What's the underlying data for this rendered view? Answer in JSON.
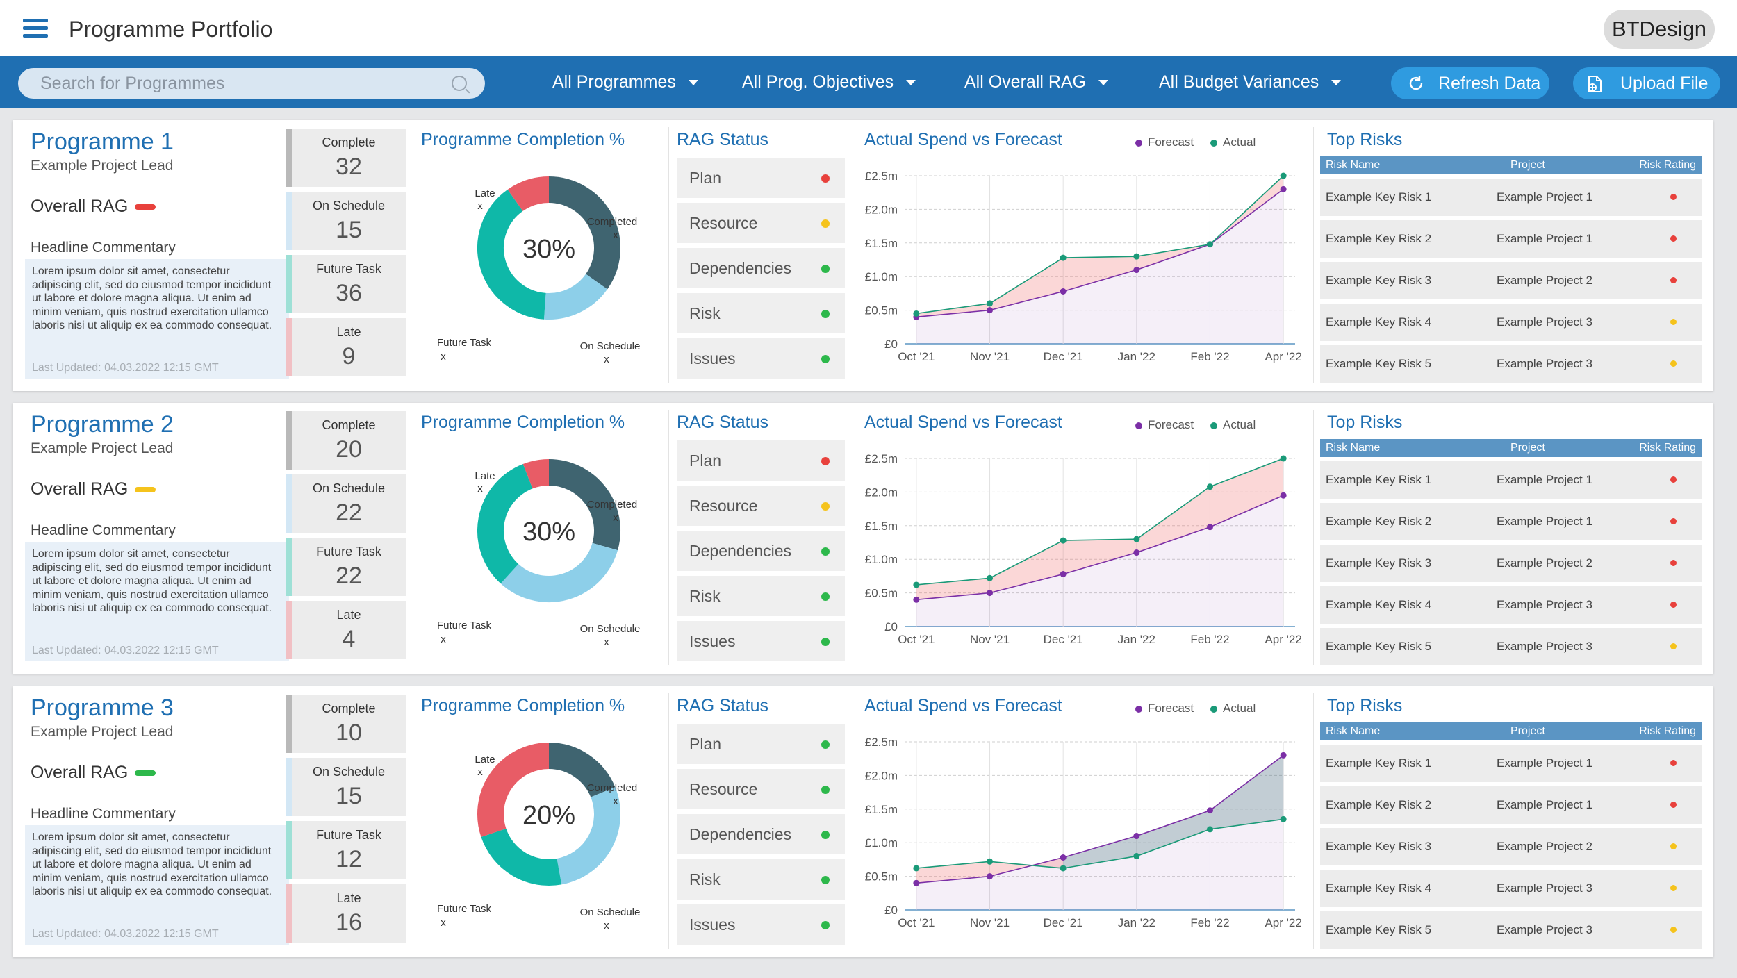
{
  "header": {
    "title": "Programme Portfolio",
    "brand": "BTDesign"
  },
  "filters": {
    "search_placeholder": "Search for Programmes",
    "programmes": "All Programmes",
    "objectives": "All Prog. Objectives",
    "rag": "All Overall RAG",
    "budget": "All Budget Variances",
    "refresh": "Refresh Data",
    "upload": "Upload File"
  },
  "colors": {
    "brand_blue": "#1f6fb2",
    "red": "#e8413c",
    "amber": "#f5c31c",
    "green": "#2db84b",
    "donut_completed": "#3f6470",
    "donut_on_schedule": "#8dcfe9",
    "donut_future": "#0fb8a8",
    "donut_late": "#e85c66",
    "forecast": "#7b2fa6",
    "actual": "#1a9a78"
  },
  "labels": {
    "overall_rag": "Overall RAG",
    "headline_commentary": "Headline Commentary",
    "completion_title": "Programme Completion %",
    "rag_title": "RAG Status",
    "spend_title": "Actual Spend vs Forecast",
    "risks_title": "Top Risks",
    "legend_forecast": "Forecast",
    "legend_actual": "Actual",
    "risk_col_name": "Risk Name",
    "risk_col_project": "Project",
    "risk_col_rating": "Risk Rating",
    "donut_late": "Late",
    "donut_completed": "Completed",
    "donut_future": "Future Task",
    "donut_on_schedule": "On Schedule",
    "donut_x": "x",
    "stat_complete": "Complete",
    "stat_on_schedule": "On Schedule",
    "stat_future": "Future Task",
    "stat_late": "Late"
  },
  "chart_axis": {
    "x": [
      "Oct '21",
      "Nov '21",
      "Dec '21",
      "Jan '22",
      "Feb '22",
      "Apr '22"
    ],
    "y_ticks": [
      "£0",
      "£0.5m",
      "£1.0m",
      "£1.5m",
      "£2.0m",
      "£2.5m"
    ],
    "ylim": [
      0,
      2.5
    ]
  },
  "programmes": [
    {
      "title": "Programme 1",
      "lead": "Example Project Lead",
      "rag": "red",
      "commentary": "Lorem ipsum dolor sit amet, consectetur adipiscing elit, sed do eiusmod tempor incididunt ut labore et dolore magna aliqua. Ut enim ad minim veniam, quis nostrud exercitation ullamco laboris nisi ut aliquip ex ea commodo consequat.",
      "updated": "Last Updated: 04.03.2022 12:15 GMT",
      "stats": {
        "complete": "32",
        "on_schedule": "15",
        "future": "36",
        "late": "9"
      },
      "completion_pct": "30%",
      "donut": {
        "completed": 32,
        "on_schedule": 15,
        "future": 36,
        "late": 9
      },
      "rag_status": [
        {
          "label": "Plan",
          "status": "red"
        },
        {
          "label": "Resource",
          "status": "amber"
        },
        {
          "label": "Dependencies",
          "status": "green"
        },
        {
          "label": "Risk",
          "status": "green"
        },
        {
          "label": "Issues",
          "status": "green"
        }
      ],
      "chart_data": {
        "type": "line",
        "title": "Actual Spend vs Forecast",
        "categories": [
          "Oct '21",
          "Nov '21",
          "Dec '21",
          "Jan '22",
          "Feb '22",
          "Apr '22"
        ],
        "ylim": [
          0,
          2.5
        ],
        "series": [
          {
            "name": "Forecast",
            "values": [
              0.4,
              0.5,
              0.78,
              1.1,
              1.48,
              2.3
            ]
          },
          {
            "name": "Actual",
            "values": [
              0.45,
              0.6,
              1.28,
              1.3,
              1.48,
              2.5
            ]
          }
        ]
      },
      "risks": [
        {
          "name": "Example Key Risk 1",
          "project": "Example Project 1",
          "rating": "red"
        },
        {
          "name": "Example Key Risk 2",
          "project": "Example Project 1",
          "rating": "red"
        },
        {
          "name": "Example Key Risk 3",
          "project": "Example Project 2",
          "rating": "red"
        },
        {
          "name": "Example Key Risk 4",
          "project": "Example Project 3",
          "rating": "amber"
        },
        {
          "name": "Example Key Risk 5",
          "project": "Example Project 3",
          "rating": "amber"
        }
      ]
    },
    {
      "title": "Programme 2",
      "lead": "Example Project Lead",
      "rag": "amber",
      "commentary": "Lorem ipsum dolor sit amet, consectetur adipiscing elit, sed do eiusmod tempor incididunt ut labore et dolore magna aliqua. Ut enim ad minim veniam, quis nostrud exercitation ullamco laboris nisi ut aliquip ex ea commodo consequat.",
      "updated": "Last Updated: 04.03.2022 12:15 GMT",
      "stats": {
        "complete": "20",
        "on_schedule": "22",
        "future": "22",
        "late": "4"
      },
      "completion_pct": "30%",
      "donut": {
        "completed": 20,
        "on_schedule": 22,
        "future": 22,
        "late": 4
      },
      "rag_status": [
        {
          "label": "Plan",
          "status": "red"
        },
        {
          "label": "Resource",
          "status": "amber"
        },
        {
          "label": "Dependencies",
          "status": "green"
        },
        {
          "label": "Risk",
          "status": "green"
        },
        {
          "label": "Issues",
          "status": "green"
        }
      ],
      "chart_data": {
        "type": "line",
        "title": "Actual Spend vs Forecast",
        "categories": [
          "Oct '21",
          "Nov '21",
          "Dec '21",
          "Jan '22",
          "Feb '22",
          "Apr '22"
        ],
        "ylim": [
          0,
          2.5
        ],
        "series": [
          {
            "name": "Forecast",
            "values": [
              0.4,
              0.5,
              0.78,
              1.1,
              1.48,
              1.95
            ]
          },
          {
            "name": "Actual",
            "values": [
              0.62,
              0.72,
              1.28,
              1.3,
              2.08,
              2.5
            ]
          }
        ]
      },
      "risks": [
        {
          "name": "Example Key Risk 1",
          "project": "Example Project 1",
          "rating": "red"
        },
        {
          "name": "Example Key Risk 2",
          "project": "Example Project 1",
          "rating": "red"
        },
        {
          "name": "Example Key Risk 3",
          "project": "Example Project 2",
          "rating": "red"
        },
        {
          "name": "Example Key Risk 4",
          "project": "Example Project 3",
          "rating": "red"
        },
        {
          "name": "Example Key Risk 5",
          "project": "Example Project 3",
          "rating": "amber"
        }
      ]
    },
    {
      "title": "Programme 3",
      "lead": "Example Project Lead",
      "rag": "green",
      "commentary": "Lorem ipsum dolor sit amet, consectetur adipiscing elit, sed do eiusmod tempor incididunt ut labore et dolore magna aliqua. Ut enim ad minim veniam, quis nostrud exercitation ullamco laboris nisi ut aliquip ex ea commodo consequat.",
      "updated": "Last Updated: 04.03.2022 12:15 GMT",
      "stats": {
        "complete": "10",
        "on_schedule": "15",
        "future": "12",
        "late": "16"
      },
      "completion_pct": "20%",
      "donut": {
        "completed": 10,
        "on_schedule": 15,
        "future": 12,
        "late": 16
      },
      "rag_status": [
        {
          "label": "Plan",
          "status": "green"
        },
        {
          "label": "Resource",
          "status": "green"
        },
        {
          "label": "Dependencies",
          "status": "green"
        },
        {
          "label": "Risk",
          "status": "green"
        },
        {
          "label": "Issues",
          "status": "green"
        }
      ],
      "chart_data": {
        "type": "line",
        "title": "Actual Spend vs Forecast",
        "categories": [
          "Oct '21",
          "Nov '21",
          "Dec '21",
          "Jan '22",
          "Feb '22",
          "Apr '22"
        ],
        "ylim": [
          0,
          2.5
        ],
        "series": [
          {
            "name": "Forecast",
            "values": [
              0.4,
              0.5,
              0.78,
              1.1,
              1.48,
              2.3
            ]
          },
          {
            "name": "Actual",
            "values": [
              0.62,
              0.72,
              0.62,
              0.8,
              1.2,
              1.35
            ]
          }
        ]
      },
      "risks": [
        {
          "name": "Example Key Risk 1",
          "project": "Example Project 1",
          "rating": "red"
        },
        {
          "name": "Example Key Risk 2",
          "project": "Example Project 1",
          "rating": "red"
        },
        {
          "name": "Example Key Risk 3",
          "project": "Example Project 2",
          "rating": "amber"
        },
        {
          "name": "Example Key Risk 4",
          "project": "Example Project 3",
          "rating": "amber"
        },
        {
          "name": "Example Key Risk 5",
          "project": "Example Project 3",
          "rating": "amber"
        }
      ]
    }
  ]
}
